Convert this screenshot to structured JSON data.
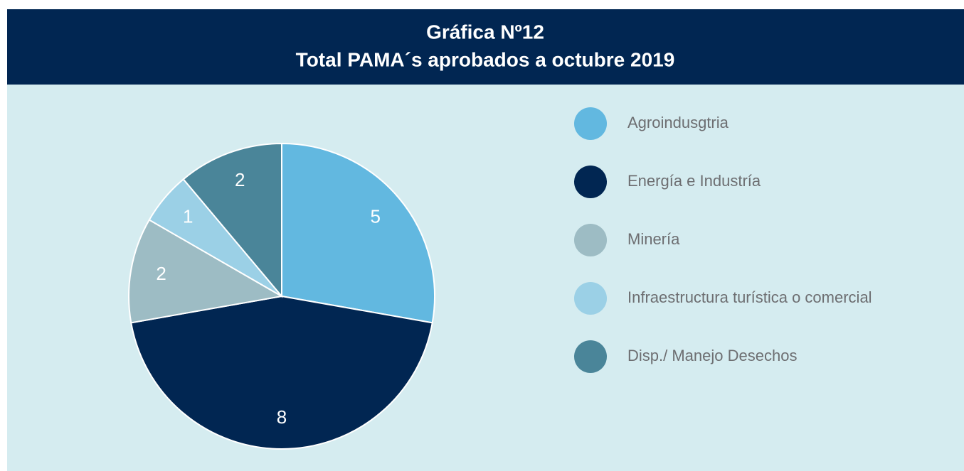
{
  "chart_data": {
    "type": "pie",
    "title": [
      "Gráfica Nº12",
      "Total PAMA´s aprobados a octubre 2019"
    ],
    "categories": [
      "Agroindusgtria",
      "Energía e Industría",
      "Minería",
      "Infraestructura turística o comercial",
      "Disp./ Manejo Desechos"
    ],
    "values": [
      5,
      8,
      2,
      1,
      2
    ],
    "colors": [
      "#62b8e0",
      "#012652",
      "#9dbcc4",
      "#9bd0e6",
      "#4a8599"
    ],
    "legend": "right"
  }
}
